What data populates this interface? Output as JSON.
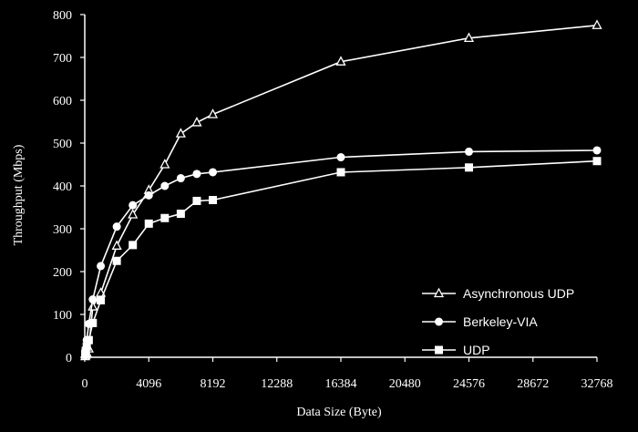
{
  "chart_data": {
    "type": "line",
    "title": "",
    "xlabel": "Data Size (Byte)",
    "ylabel": "Throughput (Mbps)",
    "xlim": [
      0,
      32768
    ],
    "ylim": [
      0,
      800
    ],
    "x_ticks": [
      0,
      4096,
      8192,
      12288,
      16384,
      20480,
      24576,
      28672,
      32768
    ],
    "y_ticks": [
      0,
      100,
      200,
      300,
      400,
      500,
      600,
      700,
      800
    ],
    "grid": false,
    "legend_position": "bottom-right",
    "colors": {
      "background": "#000000",
      "foreground": "#ffffff"
    },
    "series": [
      {
        "name": "Asynchronous UDP",
        "marker": "triangle",
        "points": [
          [
            32,
            2
          ],
          [
            64,
            5
          ],
          [
            128,
            10
          ],
          [
            256,
            20
          ],
          [
            512,
            118
          ],
          [
            1024,
            150
          ],
          [
            2048,
            260
          ],
          [
            3072,
            333
          ],
          [
            4096,
            390
          ],
          [
            5120,
            450
          ],
          [
            6144,
            522
          ],
          [
            7168,
            548
          ],
          [
            8192,
            567
          ],
          [
            16384,
            690
          ],
          [
            24576,
            745
          ],
          [
            32768,
            775
          ]
        ]
      },
      {
        "name": "Berkeley-VIA",
        "marker": "circle",
        "points": [
          [
            32,
            5
          ],
          [
            64,
            15
          ],
          [
            128,
            40
          ],
          [
            256,
            78
          ],
          [
            512,
            135
          ],
          [
            1024,
            213
          ],
          [
            2048,
            305
          ],
          [
            3072,
            355
          ],
          [
            4096,
            378
          ],
          [
            5120,
            400
          ],
          [
            6144,
            418
          ],
          [
            7168,
            428
          ],
          [
            8192,
            432
          ],
          [
            16384,
            467
          ],
          [
            24576,
            480
          ],
          [
            32768,
            483
          ]
        ]
      },
      {
        "name": "UDP",
        "marker": "square",
        "points": [
          [
            32,
            8
          ],
          [
            64,
            15
          ],
          [
            128,
            25
          ],
          [
            256,
            40
          ],
          [
            512,
            80
          ],
          [
            1024,
            133
          ],
          [
            2048,
            225
          ],
          [
            3072,
            262
          ],
          [
            4096,
            312
          ],
          [
            5120,
            325
          ],
          [
            6144,
            335
          ],
          [
            7168,
            365
          ],
          [
            8192,
            367
          ],
          [
            16384,
            432
          ],
          [
            24576,
            443
          ],
          [
            32768,
            458
          ]
        ]
      }
    ]
  }
}
